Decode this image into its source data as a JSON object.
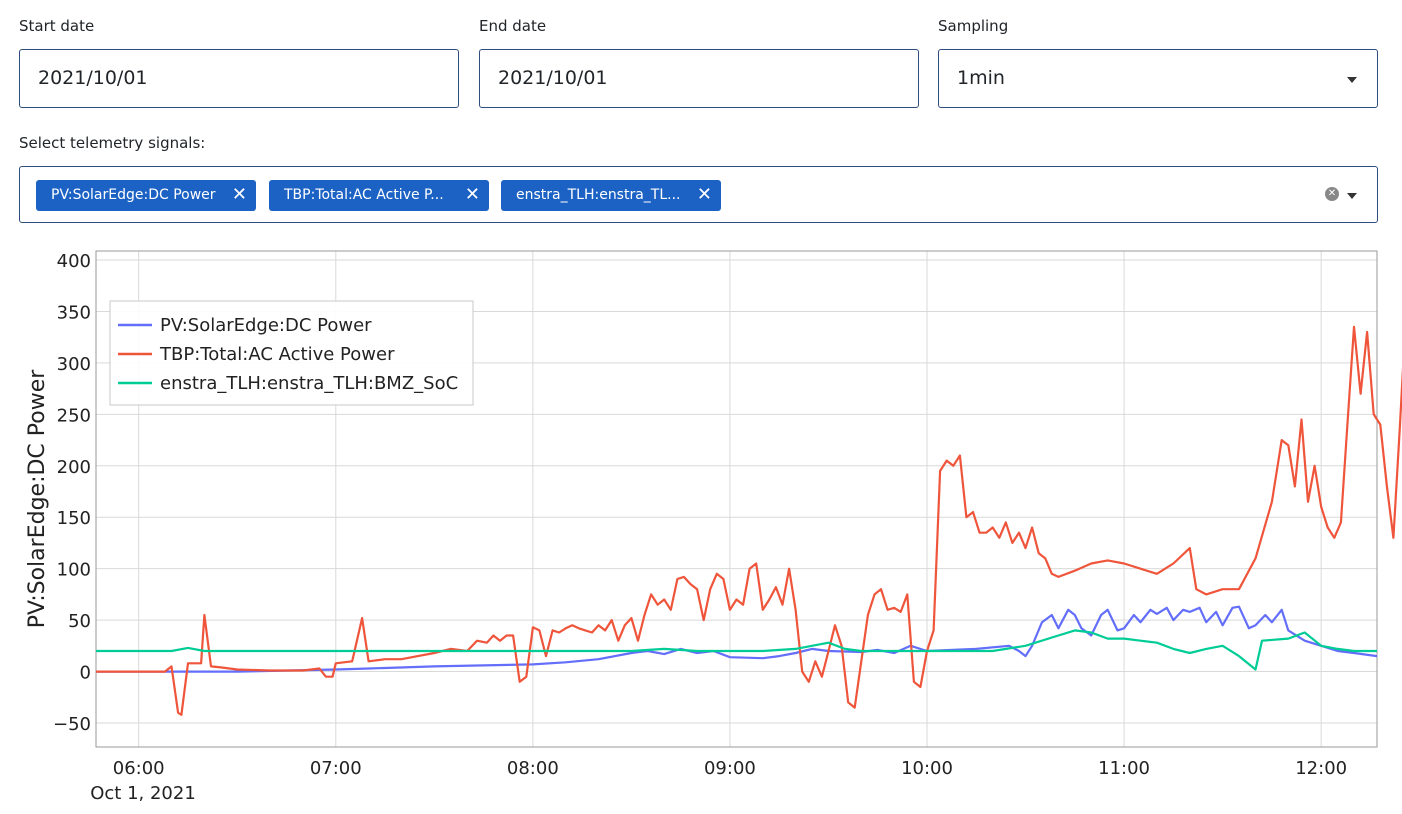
{
  "filters": {
    "start_date": {
      "label": "Start date",
      "value": "2021/10/01"
    },
    "end_date": {
      "label": "End date",
      "value": "2021/10/01"
    },
    "sampling": {
      "label": "Sampling",
      "value": "1min"
    }
  },
  "signals": {
    "label": "Select telemetry signals:",
    "chips": [
      {
        "label": "PV:SolarEdge:DC Power"
      },
      {
        "label": "TBP:Total:AC Active P..."
      },
      {
        "label": "enstra_TLH:enstra_TL..."
      }
    ]
  },
  "chart_data": {
    "type": "line",
    "ylabel": "PV:SolarEdge:DC Power",
    "xlabel": "",
    "ylim": [
      -50,
      400
    ],
    "yticks": [
      -50,
      0,
      50,
      100,
      150,
      200,
      250,
      300,
      350,
      400
    ],
    "ytick_labels": [
      "−50",
      "0",
      "50",
      "100",
      "150",
      "200",
      "250",
      "300",
      "350",
      "400"
    ],
    "xlim": [
      "05:47",
      "12:17"
    ],
    "xticks": [
      "06:00",
      "07:00",
      "08:00",
      "09:00",
      "10:00",
      "11:00",
      "12:00"
    ],
    "xdate_label": "Oct 1, 2021",
    "grid": true,
    "legend_position": "top-left",
    "series": [
      {
        "name": "PV:SolarEdge:DC Power",
        "color": "#636efa",
        "points": [
          [
            "05:47",
            0
          ],
          [
            "06:30",
            0
          ],
          [
            "07:00",
            2
          ],
          [
            "07:10",
            3
          ],
          [
            "07:30",
            5
          ],
          [
            "07:45",
            6
          ],
          [
            "08:00",
            7
          ],
          [
            "08:10",
            9
          ],
          [
            "08:20",
            12
          ],
          [
            "08:30",
            18
          ],
          [
            "08:35",
            20
          ],
          [
            "08:40",
            17
          ],
          [
            "08:45",
            22
          ],
          [
            "08:50",
            18
          ],
          [
            "08:55",
            20
          ],
          [
            "09:00",
            14
          ],
          [
            "09:10",
            13
          ],
          [
            "09:15",
            15
          ],
          [
            "09:20",
            18
          ],
          [
            "09:25",
            22
          ],
          [
            "09:30",
            20
          ],
          [
            "09:40",
            19
          ],
          [
            "09:45",
            21
          ],
          [
            "09:50",
            18
          ],
          [
            "09:55",
            25
          ],
          [
            "10:00",
            20
          ],
          [
            "10:15",
            22
          ],
          [
            "10:25",
            25
          ],
          [
            "10:28",
            20
          ],
          [
            "10:30",
            15
          ],
          [
            "10:32",
            25
          ],
          [
            "10:35",
            48
          ],
          [
            "10:38",
            55
          ],
          [
            "10:40",
            42
          ],
          [
            "10:43",
            60
          ],
          [
            "10:45",
            55
          ],
          [
            "10:47",
            42
          ],
          [
            "10:50",
            35
          ],
          [
            "10:53",
            55
          ],
          [
            "10:55",
            60
          ],
          [
            "10:58",
            40
          ],
          [
            "11:00",
            42
          ],
          [
            "11:03",
            55
          ],
          [
            "11:05",
            48
          ],
          [
            "11:08",
            60
          ],
          [
            "11:10",
            56
          ],
          [
            "11:13",
            62
          ],
          [
            "11:15",
            50
          ],
          [
            "11:18",
            60
          ],
          [
            "11:20",
            58
          ],
          [
            "11:23",
            62
          ],
          [
            "11:25",
            48
          ],
          [
            "11:28",
            58
          ],
          [
            "11:30",
            45
          ],
          [
            "11:33",
            62
          ],
          [
            "11:35",
            63
          ],
          [
            "11:38",
            42
          ],
          [
            "11:40",
            45
          ],
          [
            "11:43",
            55
          ],
          [
            "11:45",
            48
          ],
          [
            "11:48",
            60
          ],
          [
            "11:50",
            40
          ],
          [
            "11:55",
            30
          ],
          [
            "12:00",
            25
          ],
          [
            "12:05",
            20
          ],
          [
            "12:10",
            18
          ],
          [
            "12:17",
            15
          ]
        ]
      },
      {
        "name": "TBP:Total:AC Active Power",
        "color": "#ef553b",
        "points": [
          [
            "05:47",
            0
          ],
          [
            "06:00",
            0
          ],
          [
            "06:08",
            0
          ],
          [
            "06:10",
            5
          ],
          [
            "06:12",
            -40
          ],
          [
            "06:13",
            -42
          ],
          [
            "06:15",
            8
          ],
          [
            "06:17",
            8
          ],
          [
            "06:19",
            8
          ],
          [
            "06:20",
            55
          ],
          [
            "06:22",
            5
          ],
          [
            "06:25",
            4
          ],
          [
            "06:30",
            2
          ],
          [
            "06:40",
            1
          ],
          [
            "06:50",
            1
          ],
          [
            "06:55",
            3
          ],
          [
            "06:57",
            -5
          ],
          [
            "06:59",
            -5
          ],
          [
            "07:00",
            8
          ],
          [
            "07:05",
            10
          ],
          [
            "07:08",
            52
          ],
          [
            "07:10",
            10
          ],
          [
            "07:15",
            12
          ],
          [
            "07:20",
            12
          ],
          [
            "07:25",
            15
          ],
          [
            "07:30",
            18
          ],
          [
            "07:35",
            22
          ],
          [
            "07:40",
            20
          ],
          [
            "07:43",
            30
          ],
          [
            "07:46",
            28
          ],
          [
            "07:48",
            35
          ],
          [
            "07:50",
            30
          ],
          [
            "07:52",
            35
          ],
          [
            "07:54",
            35
          ],
          [
            "07:56",
            -10
          ],
          [
            "07:58",
            -5
          ],
          [
            "08:00",
            43
          ],
          [
            "08:02",
            40
          ],
          [
            "08:04",
            15
          ],
          [
            "08:06",
            40
          ],
          [
            "08:08",
            38
          ],
          [
            "08:10",
            42
          ],
          [
            "08:12",
            45
          ],
          [
            "08:14",
            42
          ],
          [
            "08:16",
            40
          ],
          [
            "08:18",
            38
          ],
          [
            "08:20",
            45
          ],
          [
            "08:22",
            40
          ],
          [
            "08:24",
            50
          ],
          [
            "08:26",
            30
          ],
          [
            "08:28",
            45
          ],
          [
            "08:30",
            52
          ],
          [
            "08:32",
            30
          ],
          [
            "08:34",
            55
          ],
          [
            "08:36",
            75
          ],
          [
            "08:38",
            65
          ],
          [
            "08:40",
            70
          ],
          [
            "08:42",
            60
          ],
          [
            "08:44",
            90
          ],
          [
            "08:46",
            92
          ],
          [
            "08:48",
            85
          ],
          [
            "08:50",
            80
          ],
          [
            "08:52",
            50
          ],
          [
            "08:54",
            80
          ],
          [
            "08:56",
            95
          ],
          [
            "08:58",
            90
          ],
          [
            "09:00",
            60
          ],
          [
            "09:02",
            70
          ],
          [
            "09:04",
            65
          ],
          [
            "09:06",
            100
          ],
          [
            "09:08",
            105
          ],
          [
            "09:10",
            60
          ],
          [
            "09:12",
            70
          ],
          [
            "09:14",
            82
          ],
          [
            "09:16",
            65
          ],
          [
            "09:18",
            100
          ],
          [
            "09:20",
            60
          ],
          [
            "09:22",
            0
          ],
          [
            "09:24",
            -10
          ],
          [
            "09:26",
            10
          ],
          [
            "09:28",
            -5
          ],
          [
            "09:30",
            20
          ],
          [
            "09:32",
            45
          ],
          [
            "09:34",
            25
          ],
          [
            "09:36",
            -30
          ],
          [
            "09:38",
            -35
          ],
          [
            "09:40",
            10
          ],
          [
            "09:42",
            55
          ],
          [
            "09:44",
            75
          ],
          [
            "09:46",
            80
          ],
          [
            "09:48",
            60
          ],
          [
            "09:50",
            62
          ],
          [
            "09:52",
            58
          ],
          [
            "09:54",
            75
          ],
          [
            "09:56",
            -10
          ],
          [
            "09:58",
            -15
          ],
          [
            "10:00",
            20
          ],
          [
            "10:02",
            40
          ],
          [
            "10:04",
            195
          ],
          [
            "10:06",
            205
          ],
          [
            "10:08",
            200
          ],
          [
            "10:10",
            210
          ],
          [
            "10:12",
            150
          ],
          [
            "10:14",
            155
          ],
          [
            "10:16",
            135
          ],
          [
            "10:18",
            135
          ],
          [
            "10:20",
            140
          ],
          [
            "10:22",
            130
          ],
          [
            "10:24",
            145
          ],
          [
            "10:26",
            125
          ],
          [
            "10:28",
            135
          ],
          [
            "10:30",
            120
          ],
          [
            "10:32",
            140
          ],
          [
            "10:34",
            115
          ],
          [
            "10:36",
            110
          ],
          [
            "10:38",
            95
          ],
          [
            "10:40",
            92
          ],
          [
            "10:45",
            98
          ],
          [
            "10:50",
            105
          ],
          [
            "10:55",
            108
          ],
          [
            "11:00",
            105
          ],
          [
            "11:05",
            100
          ],
          [
            "11:10",
            95
          ],
          [
            "11:15",
            105
          ],
          [
            "11:20",
            120
          ],
          [
            "11:22",
            80
          ],
          [
            "11:25",
            75
          ],
          [
            "11:30",
            80
          ],
          [
            "11:35",
            80
          ],
          [
            "11:40",
            110
          ],
          [
            "11:45",
            165
          ],
          [
            "11:48",
            225
          ],
          [
            "11:50",
            220
          ],
          [
            "11:52",
            180
          ],
          [
            "11:54",
            245
          ],
          [
            "11:56",
            165
          ],
          [
            "11:58",
            200
          ],
          [
            "12:00",
            160
          ],
          [
            "12:02",
            140
          ],
          [
            "12:04",
            130
          ],
          [
            "12:06",
            145
          ],
          [
            "12:08",
            240
          ],
          [
            "12:10",
            335
          ],
          [
            "12:12",
            270
          ],
          [
            "12:14",
            330
          ],
          [
            "12:16",
            250
          ],
          [
            "12:18",
            240
          ],
          [
            "12:20",
            180
          ],
          [
            "12:22",
            130
          ],
          [
            "12:24",
            240
          ],
          [
            "12:26",
            360
          ]
        ]
      },
      {
        "name": "enstra_TLH:enstra_TLH:BMZ_SoC",
        "color": "#00cc96",
        "points": [
          [
            "05:47",
            20
          ],
          [
            "06:10",
            20
          ],
          [
            "06:15",
            23
          ],
          [
            "06:20",
            20
          ],
          [
            "07:00",
            20
          ],
          [
            "08:00",
            20
          ],
          [
            "08:30",
            20
          ],
          [
            "08:40",
            22
          ],
          [
            "08:50",
            20
          ],
          [
            "09:00",
            20
          ],
          [
            "09:10",
            20
          ],
          [
            "09:20",
            22
          ],
          [
            "09:30",
            28
          ],
          [
            "09:35",
            22
          ],
          [
            "09:40",
            20
          ],
          [
            "09:50",
            20
          ],
          [
            "10:00",
            20
          ],
          [
            "10:10",
            20
          ],
          [
            "10:20",
            20
          ],
          [
            "10:30",
            25
          ],
          [
            "10:40",
            35
          ],
          [
            "10:45",
            40
          ],
          [
            "10:50",
            38
          ],
          [
            "10:55",
            32
          ],
          [
            "11:00",
            32
          ],
          [
            "11:05",
            30
          ],
          [
            "11:10",
            28
          ],
          [
            "11:15",
            22
          ],
          [
            "11:20",
            18
          ],
          [
            "11:25",
            22
          ],
          [
            "11:30",
            25
          ],
          [
            "11:35",
            15
          ],
          [
            "11:40",
            2
          ],
          [
            "11:42",
            30
          ],
          [
            "11:50",
            32
          ],
          [
            "11:55",
            38
          ],
          [
            "12:00",
            25
          ],
          [
            "12:05",
            22
          ],
          [
            "12:10",
            20
          ],
          [
            "12:17",
            20
          ]
        ]
      }
    ]
  }
}
